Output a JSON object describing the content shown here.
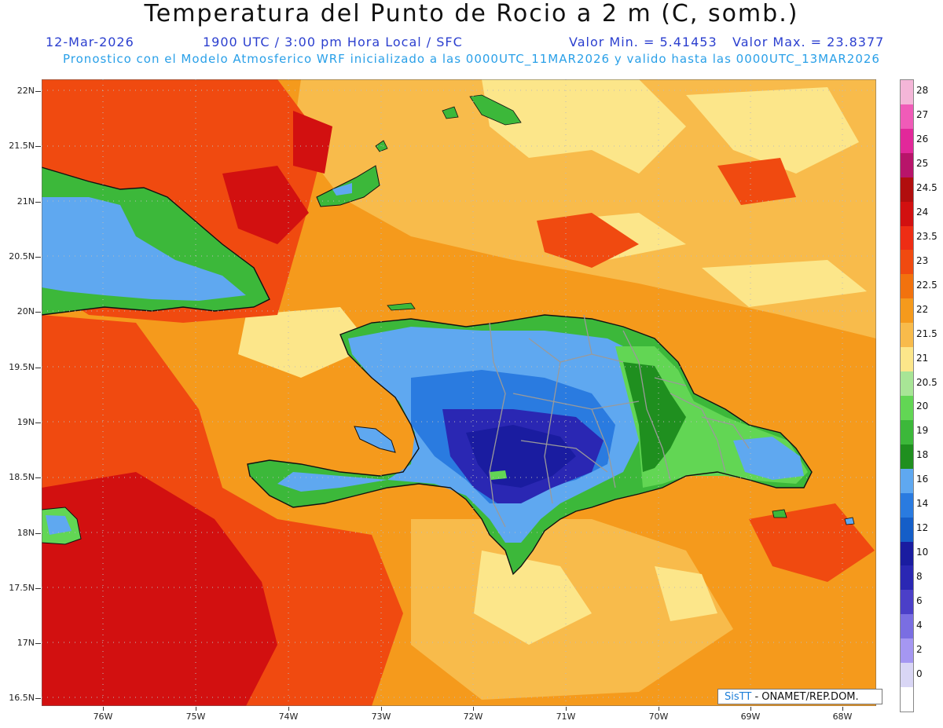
{
  "header": {
    "title": "Temperatura del Punto de Rocio a 2 m (C, somb.)",
    "date": "12-Mar-2026",
    "time_info": "1900 UTC / 3:00 pm Hora Local / SFC",
    "min_label": "Valor Min. = 5.41453",
    "max_label": "Valor Max. = 23.8377",
    "model_info": "Pronostico con el Modelo Atmosferico WRF inicializado a las 0000UTC_11MAR2026 y valido hasta las  0000UTC_13MAR2026"
  },
  "axes": {
    "lat_labels": [
      "22N",
      "21.5N",
      "21N",
      "20.5N",
      "20N",
      "19.5N",
      "19N",
      "18.5N",
      "18N",
      "17.5N",
      "17N",
      "16.5N"
    ],
    "lon_labels": [
      "76W",
      "75W",
      "74W",
      "73W",
      "72W",
      "71W",
      "70W",
      "69W",
      "68W"
    ]
  },
  "legend": {
    "levels": [
      {
        "label": "28",
        "color": "#f4b6d8"
      },
      {
        "label": "27",
        "color": "#f05bb8"
      },
      {
        "label": "26",
        "color": "#e2289a"
      },
      {
        "label": "25",
        "color": "#b8146a"
      },
      {
        "label": "24.5",
        "color": "#b10e0e"
      },
      {
        "label": "24",
        "color": "#d21010"
      },
      {
        "label": "23.5",
        "color": "#ee2d14"
      },
      {
        "label": "23",
        "color": "#f04a10"
      },
      {
        "label": "22.5",
        "color": "#f2720e"
      },
      {
        "label": "22",
        "color": "#f59a1c"
      },
      {
        "label": "21.5",
        "color": "#f8bb4b"
      },
      {
        "label": "21",
        "color": "#fce68a"
      },
      {
        "label": "20.5",
        "color": "#a8e596"
      },
      {
        "label": "20",
        "color": "#62d654"
      },
      {
        "label": "19",
        "color": "#3cb83a"
      },
      {
        "label": "18",
        "color": "#1f8f1f"
      },
      {
        "label": "16",
        "color": "#5fa8f0"
      },
      {
        "label": "14",
        "color": "#2a7be0"
      },
      {
        "label": "12",
        "color": "#155ec8"
      },
      {
        "label": "10",
        "color": "#1a1ca0"
      },
      {
        "label": "8",
        "color": "#2a27b3"
      },
      {
        "label": "6",
        "color": "#4b3fc8"
      },
      {
        "label": "4",
        "color": "#7a6ee2"
      },
      {
        "label": "2",
        "color": "#a597f2"
      },
      {
        "label": "0",
        "color": "#d9d6f5"
      },
      {
        "label": "",
        "color": "#ffffff"
      }
    ]
  },
  "credit": {
    "brand": "SisTT",
    "text": "- ONAMET/REP.DOM."
  },
  "map_colors": {
    "ocean_warm": "#f59a1c",
    "ocean_hot": "#f04a10",
    "ocean_very_hot": "#d21010",
    "ocean_mild": "#f8bb4b",
    "ocean_cool": "#fce68a",
    "land_green": "#3cb83a",
    "land_dark_green": "#1f8f1f",
    "land_light_green": "#62d654",
    "land_blue": "#5fa8f0",
    "land_mid_blue": "#2a7be0",
    "land_deep": "#2a27b3",
    "land_deepest": "#1a1ca0",
    "province_border": "#9a9a9a",
    "coast": "#111111"
  }
}
